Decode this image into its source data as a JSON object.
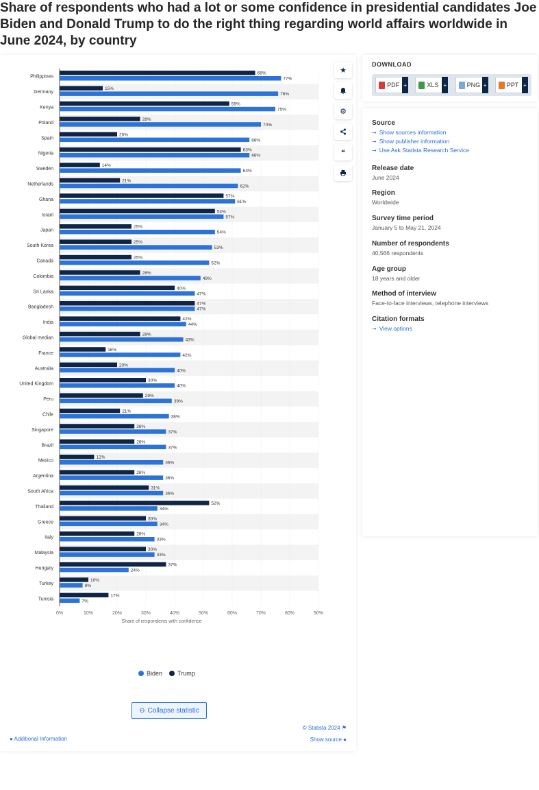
{
  "title": "Share of respondents who had a lot or some confidence in presidential candidates Joe Biden and Donald Trump to do the right thing regarding world affairs worldwide in June 2024, by country",
  "chart_data": {
    "type": "bar",
    "orientation": "horizontal",
    "xlabel": "Share of respondents with confidence",
    "xlim": [
      0,
      90
    ],
    "ticks": [
      "0%",
      "10%",
      "20%",
      "30%",
      "40%",
      "50%",
      "60%",
      "70%",
      "80%",
      "90%"
    ],
    "series": [
      {
        "name": "Trump",
        "values": [
          68,
          15,
          59,
          28,
          20,
          63,
          14,
          21,
          57,
          54,
          25,
          25,
          25,
          28,
          40,
          47,
          42,
          28,
          16,
          20,
          30,
          29,
          21,
          26,
          26,
          12,
          26,
          31,
          52,
          30,
          26,
          30,
          37,
          10,
          17
        ]
      },
      {
        "name": "Biden",
        "values": [
          77,
          76,
          75,
          70,
          66,
          66,
          63,
          62,
          61,
          57,
          54,
          53,
          52,
          49,
          47,
          47,
          44,
          43,
          42,
          40,
          40,
          39,
          38,
          37,
          37,
          36,
          36,
          36,
          34,
          34,
          33,
          33,
          24,
          8,
          7
        ]
      }
    ],
    "categories": [
      "Philippines",
      "Germany",
      "Kenya",
      "Poland",
      "Spain",
      "Nigeria",
      "Sweden",
      "Netherlands",
      "Ghana",
      "Israel",
      "Japan",
      "South Korea",
      "Canada",
      "Colombia",
      "Sri Lanka",
      "Bangladesh",
      "India",
      "Global median",
      "France",
      "Australia",
      "United Kingdom",
      "Peru",
      "Chile",
      "Singapore",
      "Brazil",
      "Mexico",
      "Argentina",
      "South Africa",
      "Thailand",
      "Greece",
      "Italy",
      "Malaysia",
      "Hungary",
      "Turkey",
      "Tunisia"
    ],
    "colors": {
      "Biden": "#2b72d9",
      "Trump": "#0f2546"
    },
    "legend": [
      "Biden",
      "Trump"
    ]
  },
  "sidebar_icons": [
    "star-icon",
    "bell-icon",
    "gear-icon",
    "share-icon",
    "quote-icon",
    "print-icon"
  ],
  "footer": {
    "collapse": "Collapse statistic",
    "credit": "© Statista 2024",
    "additional": "Additional Information",
    "show_source": "Show source"
  },
  "download": {
    "title": "DOWNLOAD",
    "buttons": [
      "PDF",
      "XLS",
      "PNG",
      "PPT"
    ]
  },
  "info": {
    "source_title": "Source",
    "links": [
      "Show sources information",
      "Show publisher information",
      "Use Ask Statista Research Service"
    ],
    "release_title": "Release date",
    "release": "June 2024",
    "region_title": "Region",
    "region": "Worldwide",
    "survey_title": "Survey time period",
    "survey": "January 5 to May 21, 2024",
    "respondents_title": "Number of respondents",
    "respondents": "40,566 respondents",
    "age_title": "Age group",
    "age": "18 years and older",
    "method_title": "Method of interview",
    "method": "Face-to-face interviews, telephone interviews",
    "citation_title": "Citation formats",
    "citation_link": "View options"
  }
}
